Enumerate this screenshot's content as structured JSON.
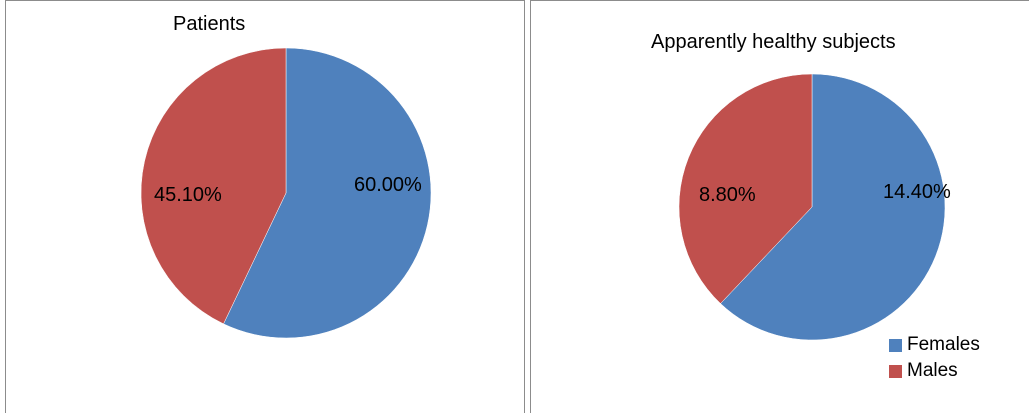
{
  "chart_data": [
    {
      "type": "pie",
      "title": "Patients",
      "categories": [
        "Females",
        "Males"
      ],
      "values": [
        60.0,
        45.1
      ],
      "labels": [
        "60.00%",
        "45.10%"
      ],
      "colors": [
        "#4f81bd",
        "#c0504d"
      ],
      "legend": "none"
    },
    {
      "type": "pie",
      "title": "Apparently healthy subjects",
      "categories": [
        "Females",
        "Males"
      ],
      "values": [
        14.4,
        8.8
      ],
      "labels": [
        "14.40%",
        "8.80%"
      ],
      "colors": [
        "#4f81bd",
        "#c0504d"
      ],
      "legend": "bottom-right"
    }
  ],
  "legend": {
    "items": [
      {
        "label": "Females",
        "color": "#4f81bd"
      },
      {
        "label": "Males",
        "color": "#c0504d"
      }
    ]
  }
}
